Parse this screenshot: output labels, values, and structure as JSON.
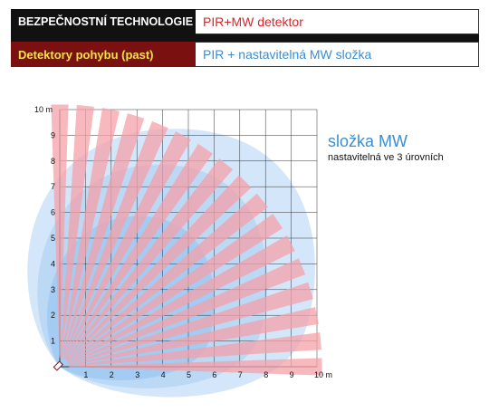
{
  "header": {
    "category": "BEZPEČNOSTNÍ TECHNOLOGIE",
    "product": "PIR+MW detektor",
    "subcategory": "Detektory pohybu (past)",
    "description": "PIR + nastavitelná MW složka"
  },
  "legend": {
    "title": "složka MW",
    "subtitle": "nastavitelná ve 3 úrovních"
  },
  "axes": {
    "x_ticks": [
      "1",
      "2",
      "3",
      "4",
      "5",
      "6",
      "7",
      "8",
      "9",
      "10 m"
    ],
    "y_ticks": [
      "1",
      "2",
      "3",
      "4",
      "5",
      "6",
      "7",
      "8",
      "9",
      "10 m"
    ]
  },
  "colors": {
    "pir_zone": "#f4a0a8",
    "mw_zone_outer": "#cfe3f8",
    "mw_zone_mid": "#b6d5f5",
    "mw_zone_inner": "#9fc8f0",
    "grid": "#333333"
  }
}
